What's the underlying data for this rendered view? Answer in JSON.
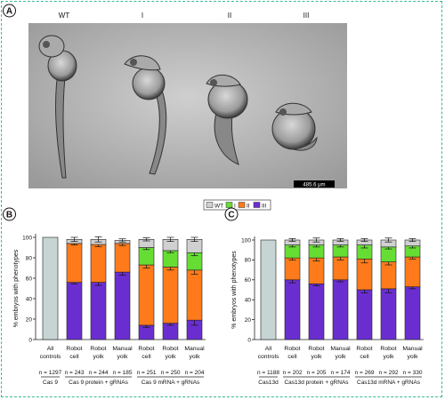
{
  "figure": {
    "panel_a": {
      "label": "A",
      "phenotype_labels": [
        "WT",
        "I",
        "II",
        "III"
      ],
      "scale_bar_label": "485.6 μm"
    },
    "legend": [
      "WT",
      "I",
      "II",
      "III"
    ],
    "colors": {
      "WT": "#d0d0d0",
      "I": "#66dd33",
      "II": "#ff7a1a",
      "III": "#6a2ed0",
      "control": "#c6d4d4"
    }
  },
  "chart_data": [
    {
      "type": "bar",
      "stacked": true,
      "panel": "B",
      "ylabel": "% embryos with phenotypes",
      "ylim": [
        0,
        100
      ],
      "yticks": [
        0,
        20,
        40,
        60,
        80,
        100
      ],
      "categories": [
        [
          "All",
          "controls"
        ],
        [
          "Robot",
          "cell"
        ],
        [
          "Robot",
          "yolk"
        ],
        [
          "Manual",
          "yolk"
        ],
        [
          "Robot",
          "cell"
        ],
        [
          "Robot",
          "yolk"
        ],
        [
          "Manual",
          "yolk"
        ]
      ],
      "n_labels": [
        "n = 1297",
        "n = 243",
        "n = 244",
        "n = 185",
        "n = 251",
        "n = 250",
        "n = 204"
      ],
      "groups": [
        {
          "label": "Cas 9",
          "from": 0,
          "to": 0
        },
        {
          "label": "Cas 9  protein + gRNAs",
          "from": 1,
          "to": 3
        },
        {
          "label": "Cas 9  mRNA + gRNAs",
          "from": 4,
          "to": 6
        }
      ],
      "series": [
        {
          "name": "III",
          "values": [
            0,
            56,
            56,
            66,
            14,
            16,
            19
          ]
        },
        {
          "name": "II",
          "values": [
            0,
            38,
            37,
            28,
            59,
            55,
            49
          ]
        },
        {
          "name": "I",
          "values": [
            0,
            0,
            0,
            0,
            17,
            16,
            17
          ]
        },
        {
          "name": "WT",
          "values": [
            100,
            4,
            5,
            3,
            8,
            11,
            13
          ]
        }
      ],
      "errors": {
        "III": [
          0,
          1.5,
          3,
          3,
          2,
          2,
          5
        ],
        "II": [
          0,
          1.5,
          2,
          2,
          3,
          3,
          4
        ],
        "I": [
          0,
          0,
          0,
          0,
          2,
          2,
          3
        ],
        "WT": [
          0,
          2,
          2.5,
          1.5,
          1.5,
          2,
          2
        ]
      }
    },
    {
      "type": "bar",
      "stacked": true,
      "panel": "C",
      "ylabel": "% embryos with phenotypes",
      "ylim": [
        0,
        100
      ],
      "yticks": [
        0,
        20,
        40,
        60,
        80,
        100
      ],
      "categories": [
        [
          "All",
          "controls"
        ],
        [
          "Robot",
          "cell"
        ],
        [
          "Robot",
          "yolk"
        ],
        [
          "Manual",
          "yolk"
        ],
        [
          "Robot",
          "cell"
        ],
        [
          "Robot",
          "yolk"
        ],
        [
          "Manual",
          "yolk"
        ]
      ],
      "n_labels": [
        "n = 1188",
        "n = 202",
        "n = 205",
        "n = 174",
        "n = 269",
        "n = 292",
        "n = 330"
      ],
      "groups": [
        {
          "label": "Cas13d",
          "from": 0,
          "to": 0
        },
        {
          "label": "Cas13d  protein + gRNAs",
          "from": 1,
          "to": 3
        },
        {
          "label": "Cas13d  mRNA + gRNAs",
          "from": 4,
          "to": 6
        }
      ],
      "series": [
        {
          "name": "III",
          "values": [
            0,
            60,
            56,
            60,
            50,
            51,
            53
          ]
        },
        {
          "name": "II",
          "values": [
            0,
            22,
            26,
            23,
            31,
            27,
            30
          ]
        },
        {
          "name": "I",
          "values": [
            0,
            13,
            13,
            12,
            14,
            15,
            11
          ]
        },
        {
          "name": "WT",
          "values": [
            100,
            5,
            5,
            5,
            5,
            7,
            6
          ]
        }
      ],
      "errors": {
        "III": [
          0,
          3,
          2,
          2,
          3,
          4,
          2
        ],
        "II": [
          0,
          2,
          3,
          3,
          4,
          3,
          2
        ],
        "I": [
          0,
          2,
          2,
          2,
          3,
          2,
          2
        ],
        "WT": [
          0,
          1.5,
          2,
          1.5,
          1.5,
          2,
          1.5
        ]
      }
    }
  ]
}
